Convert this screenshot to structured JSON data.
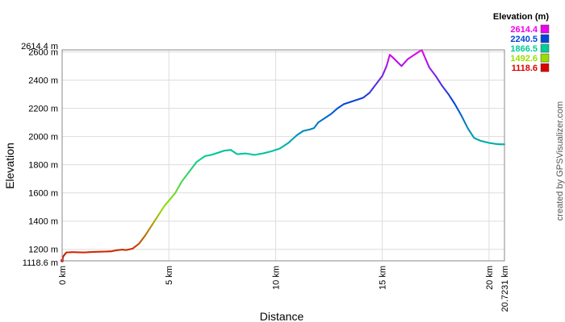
{
  "chart_data": {
    "type": "line",
    "xlabel": "Distance",
    "ylabel": "Elevation",
    "xlim": [
      0,
      20.7231
    ],
    "ylim": [
      1118.6,
      2614.4
    ],
    "grid": true,
    "x_ticks": [
      {
        "value": 0,
        "label": "0 km"
      },
      {
        "value": 5,
        "label": "5 km"
      },
      {
        "value": 10,
        "label": "10 km"
      },
      {
        "value": 15,
        "label": "15 km"
      },
      {
        "value": 20,
        "label": "20 km"
      },
      {
        "value": 20.7231,
        "label": "20.7231 km"
      }
    ],
    "y_ticks": [
      {
        "value": 1118.6,
        "label": "1118.6 m"
      },
      {
        "value": 1200,
        "label": "1200 m"
      },
      {
        "value": 1400,
        "label": "1400 m"
      },
      {
        "value": 1600,
        "label": "1600 m"
      },
      {
        "value": 1800,
        "label": "1800 m"
      },
      {
        "value": 2000,
        "label": "2000 m"
      },
      {
        "value": 2200,
        "label": "2200 m"
      },
      {
        "value": 2400,
        "label": "2400 m"
      },
      {
        "value": 2600,
        "label": "2600 m"
      },
      {
        "value": 2614.4,
        "label": "2614.4 m"
      }
    ],
    "legend": {
      "title": "Elevation (m)",
      "placement": "top-right",
      "entries": [
        {
          "label": "2614.4",
          "color": "#ee00ee"
        },
        {
          "label": "2240.5",
          "color": "#0044dd"
        },
        {
          "label": "1866.5",
          "color": "#00cc99"
        },
        {
          "label": "1492.6",
          "color": "#99dd00"
        },
        {
          "label": "1118.6",
          "color": "#dd0000"
        }
      ]
    },
    "credit": "created by GPSVisualizer.com",
    "series": [
      {
        "x": [
          0,
          0.05,
          0.2,
          0.5,
          1.0,
          1.5,
          2.0,
          2.3,
          2.5,
          2.8,
          3.0,
          3.3,
          3.6,
          3.9,
          4.2,
          4.5,
          4.8,
          5.0,
          5.3,
          5.6,
          6.0,
          6.3,
          6.7,
          7.0,
          7.3,
          7.6,
          7.9,
          8.2,
          8.6,
          9.0,
          9.4,
          9.8,
          10.2,
          10.6,
          11.0,
          11.3,
          11.6,
          11.8,
          12.0,
          12.3,
          12.6,
          12.9,
          13.2,
          13.5,
          13.8,
          14.1,
          14.4,
          14.7,
          15.0,
          15.2,
          15.35,
          15.5,
          15.7,
          15.9,
          16.2,
          16.5,
          16.7,
          16.85,
          17.0,
          17.2,
          17.5,
          17.8,
          18.1,
          18.4,
          18.7,
          19.0,
          19.3,
          19.6,
          20.0,
          20.3,
          20.5,
          20.7231
        ],
        "y": [
          1120,
          1150,
          1178,
          1180,
          1178,
          1182,
          1184,
          1186,
          1192,
          1198,
          1195,
          1205,
          1240,
          1300,
          1370,
          1440,
          1510,
          1545,
          1600,
          1680,
          1760,
          1820,
          1862,
          1870,
          1885,
          1900,
          1905,
          1875,
          1880,
          1870,
          1880,
          1895,
          1915,
          1955,
          2010,
          2040,
          2050,
          2060,
          2100,
          2130,
          2160,
          2200,
          2230,
          2245,
          2260,
          2275,
          2310,
          2370,
          2430,
          2500,
          2580,
          2560,
          2530,
          2500,
          2550,
          2580,
          2600,
          2614,
          2560,
          2490,
          2430,
          2360,
          2300,
          2230,
          2150,
          2060,
          1990,
          1970,
          1955,
          1948,
          1945,
          1945
        ]
      }
    ]
  }
}
